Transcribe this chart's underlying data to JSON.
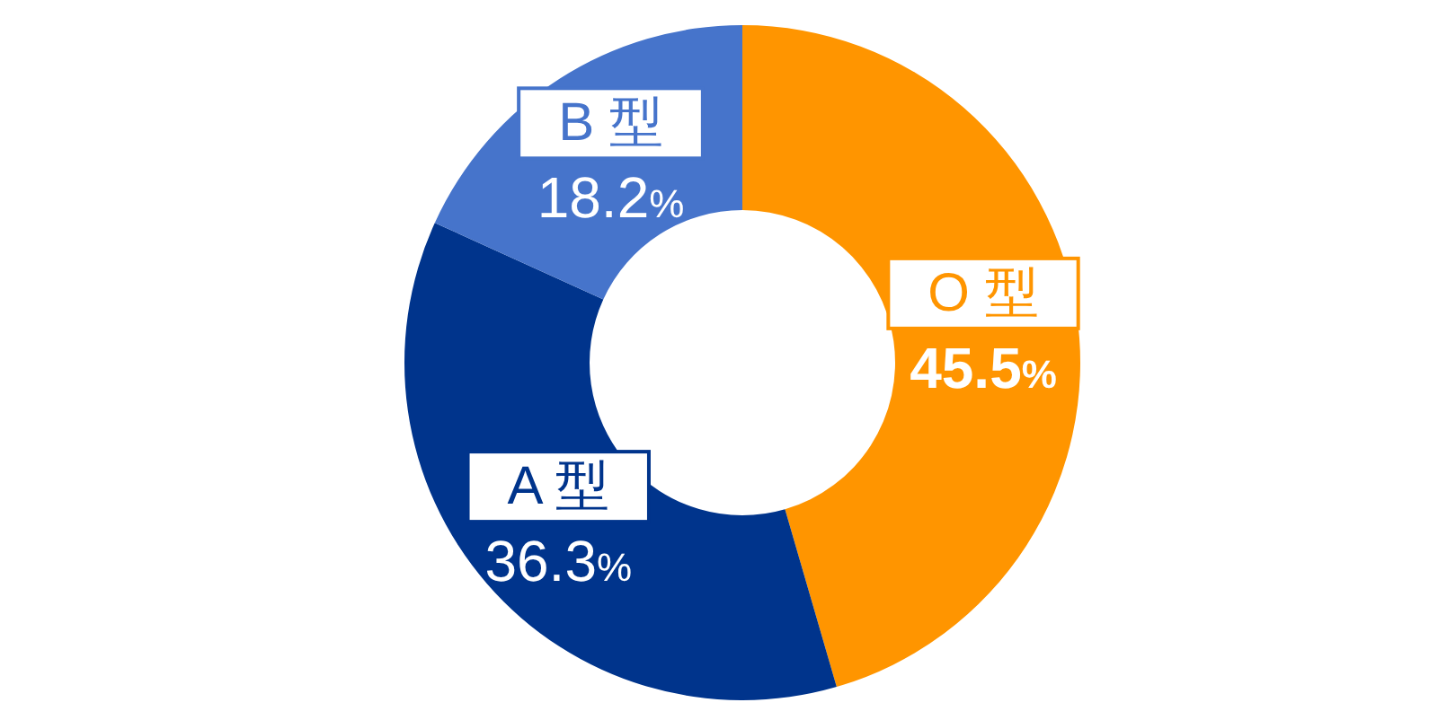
{
  "chart_data": {
    "type": "donut",
    "categories": [
      "O 型",
      "A 型",
      "B 型"
    ],
    "values": [
      45.5,
      36.3,
      18.2
    ],
    "colors": [
      "#ff9500",
      "#00348c",
      "#4674cb"
    ],
    "value_labels": [
      "45.5%",
      "36.3%",
      "18.2%"
    ]
  }
}
